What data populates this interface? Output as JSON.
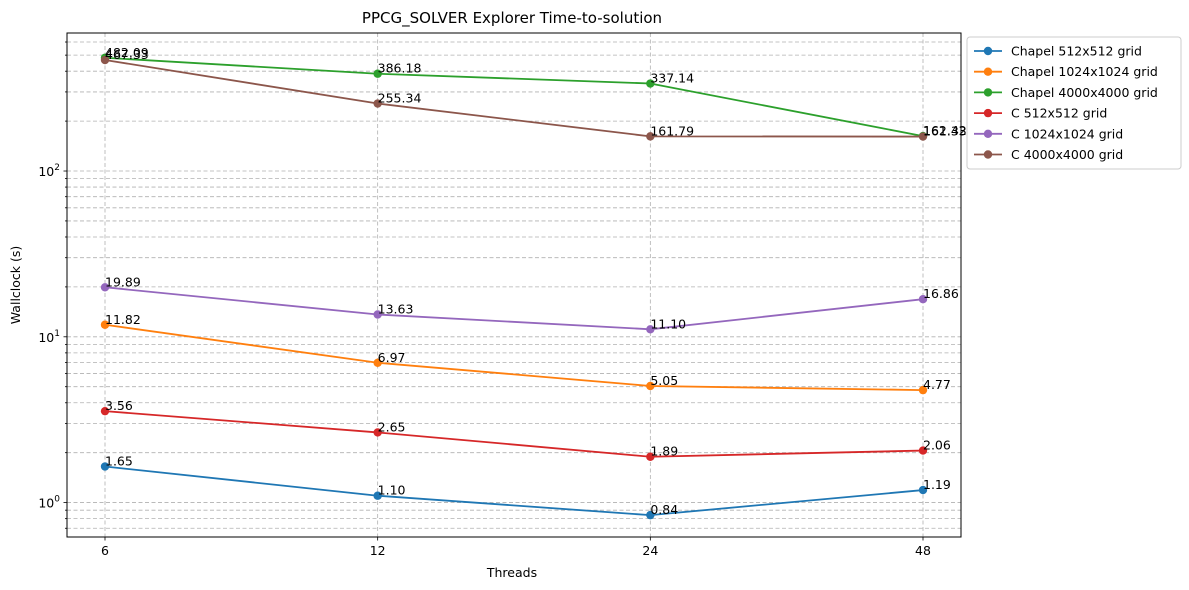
{
  "chart_data": {
    "type": "line",
    "title": "PPCG_SOLVER Explorer Time-to-solution",
    "xlabel": "Threads",
    "ylabel": "Wallclock (s)",
    "x": [
      6,
      12,
      24,
      48
    ],
    "x_tick_labels": [
      "6",
      "12",
      "24",
      "48"
    ],
    "x_scale": "log2",
    "y_scale": "log",
    "ylim": [
      0.62,
      680
    ],
    "y_tick_labels": [
      {
        "value": 1,
        "base": "10",
        "exp": "0"
      },
      {
        "value": 10,
        "base": "10",
        "exp": "1"
      },
      {
        "value": 100,
        "base": "10",
        "exp": "2"
      }
    ],
    "grid": true,
    "legend_position": "outside-right",
    "series": [
      {
        "name": "Chapel 512x512 grid",
        "color": "#1f77b4",
        "values": [
          1.65,
          1.1,
          0.84,
          1.19
        ],
        "labels": [
          "1.65",
          "1.10",
          "0.84",
          "1.19"
        ]
      },
      {
        "name": "Chapel 1024x1024 grid",
        "color": "#ff7f0e",
        "values": [
          11.82,
          6.97,
          5.05,
          4.77
        ],
        "labels": [
          "11.82",
          "6.97",
          "5.05",
          "4.77"
        ]
      },
      {
        "name": "Chapel 4000x4000 grid",
        "color": "#2ca02c",
        "values": [
          482.09,
          386.18,
          337.14,
          162.42
        ],
        "labels": [
          "482.09",
          "386.18",
          "337.14",
          "162.42"
        ]
      },
      {
        "name": "C 512x512 grid",
        "color": "#d62728",
        "values": [
          3.56,
          2.65,
          1.89,
          2.06
        ],
        "labels": [
          "3.56",
          "2.65",
          "1.89",
          "2.06"
        ]
      },
      {
        "name": "C 1024x1024 grid",
        "color": "#9467bd",
        "values": [
          19.89,
          13.63,
          11.1,
          16.86
        ],
        "labels": [
          "19.89",
          "13.63",
          "11.10",
          "16.86"
        ]
      },
      {
        "name": "C 4000x4000 grid",
        "color": "#8c564b",
        "values": [
          467.33,
          255.34,
          161.79,
          161.33
        ],
        "labels": [
          "467.33",
          "255.34",
          "161.79",
          "161.33"
        ]
      }
    ]
  }
}
